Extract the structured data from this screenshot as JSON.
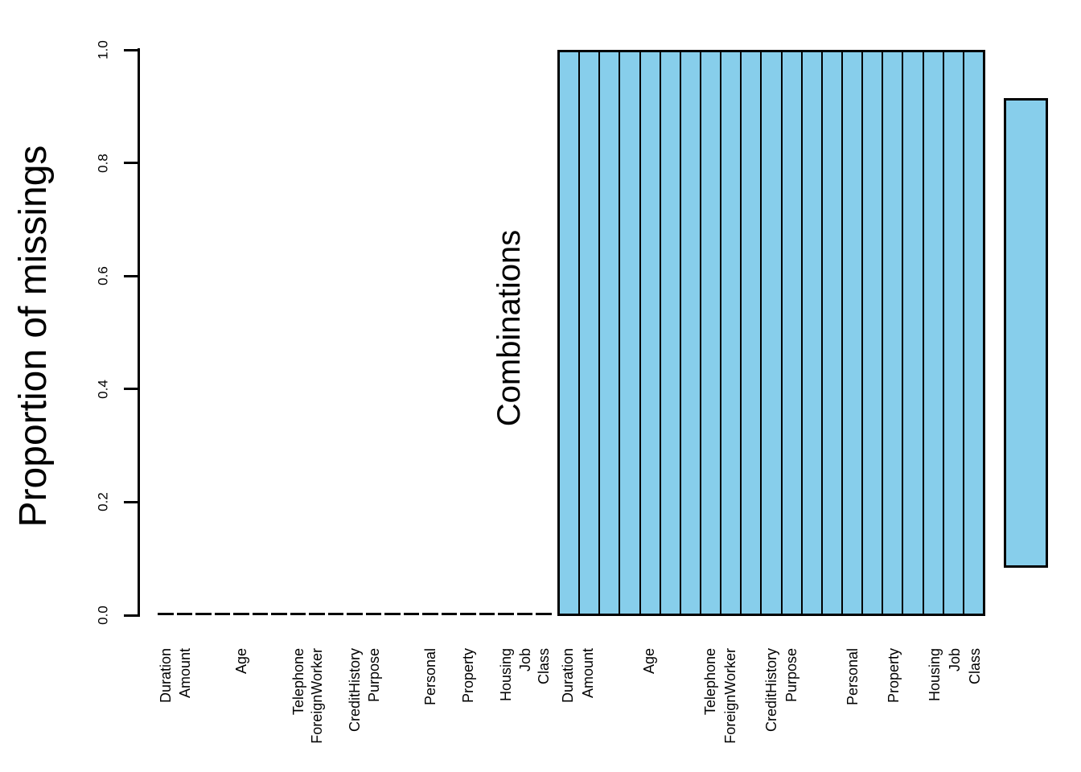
{
  "colors": {
    "fill": "#87CEEB",
    "stroke": "#000000",
    "background": "#FFFFFF"
  },
  "chart_data": [
    {
      "type": "bar",
      "panel": "left",
      "ylabel": "Proportion of missings",
      "ylim": [
        0.0,
        1.0
      ],
      "ytick_labels": [
        "0.0",
        "0.2",
        "0.4",
        "0.6",
        "0.8",
        "1.0"
      ],
      "grid": "off",
      "n_bars": 21,
      "values": [
        0,
        0,
        0,
        0,
        0,
        0,
        0,
        0,
        0,
        0,
        0,
        0,
        0,
        0,
        0,
        0,
        0,
        0,
        0,
        0,
        0
      ],
      "bar_color": "#87CEEB",
      "xtick_labels_visible": [
        {
          "text": "Duration",
          "slot": 1
        },
        {
          "text": "Amount",
          "slot": 2
        },
        {
          "text": "Age",
          "slot": 5
        },
        {
          "text": "Telephone",
          "slot": 8
        },
        {
          "text": "ForeignWorker",
          "slot": 9
        },
        {
          "text": "CreditHistory",
          "slot": 11
        },
        {
          "text": "Purpose",
          "slot": 12
        },
        {
          "text": "Personal",
          "slot": 15
        },
        {
          "text": "Property",
          "slot": 17
        },
        {
          "text": "Housing",
          "slot": 19
        },
        {
          "text": "Job",
          "slot": 20
        },
        {
          "text": "Class",
          "slot": 21
        }
      ]
    },
    {
      "type": "heatmap",
      "panel": "right",
      "ylabel": "Combinations",
      "n_cols": 21,
      "n_rows": 1,
      "cell_color": "#87CEEB",
      "grid_line_color": "#000000",
      "rows": [
        {
          "combination_index": 1,
          "cells_observed": 21,
          "cells_missing": 0
        }
      ],
      "freq_bar": {
        "height_fraction": 0.83,
        "color": "#87CEEB"
      },
      "xtick_labels_visible": [
        {
          "text": "Duration",
          "slot": 1
        },
        {
          "text": "Amount",
          "slot": 2
        },
        {
          "text": "Age",
          "slot": 5
        },
        {
          "text": "Telephone",
          "slot": 8
        },
        {
          "text": "ForeignWorker",
          "slot": 9
        },
        {
          "text": "CreditHistory",
          "slot": 11
        },
        {
          "text": "Purpose",
          "slot": 12
        },
        {
          "text": "Personal",
          "slot": 15
        },
        {
          "text": "Property",
          "slot": 17
        },
        {
          "text": "Housing",
          "slot": 19
        },
        {
          "text": "Job",
          "slot": 20
        },
        {
          "text": "Class",
          "slot": 21
        }
      ]
    }
  ]
}
